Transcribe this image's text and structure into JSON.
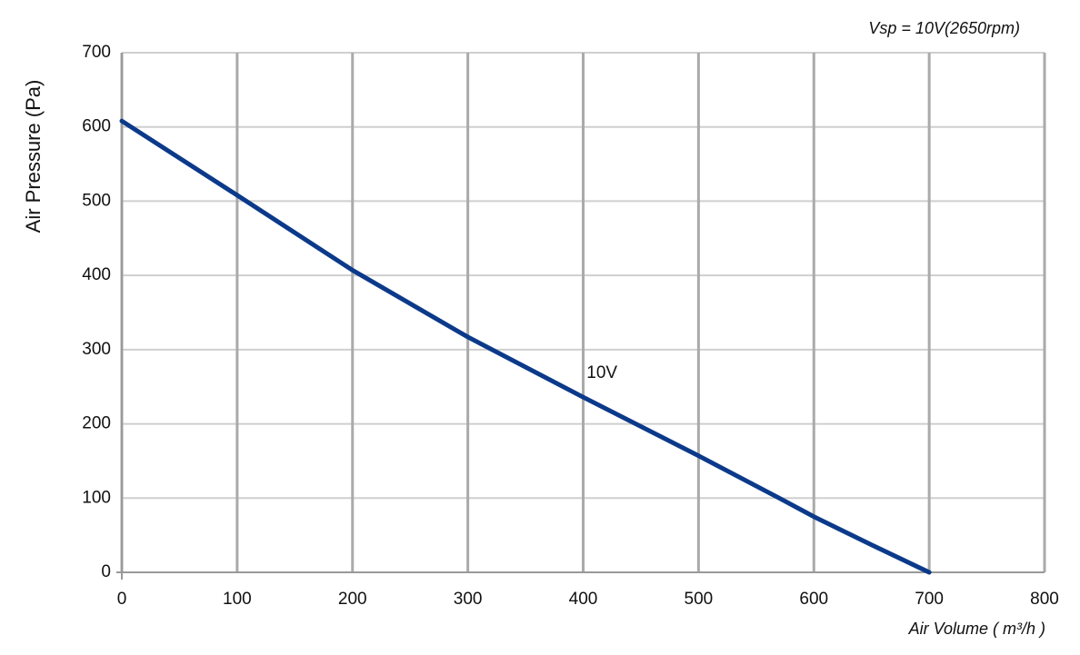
{
  "chart_data": {
    "type": "line",
    "title": "Vsp = 10V(2650rpm)",
    "x_label": "Air Volume ( m³/h )",
    "y_label": "Air Pressure  (Pa)",
    "x": [
      0,
      100,
      200,
      300,
      400,
      500,
      570,
      600,
      650,
      700
    ],
    "series": [
      {
        "name": "10V",
        "color": "#0c3a8a",
        "values": [
          608,
          508,
          407,
          317,
          236,
          157,
          100,
          75,
          37,
          0
        ]
      }
    ],
    "annotations": [
      {
        "text": "10V",
        "x": 403,
        "y": 268
      }
    ],
    "xlim": [
      0,
      800
    ],
    "xticks": [
      0,
      100,
      200,
      300,
      400,
      500,
      600,
      700,
      800
    ],
    "ylim": [
      0,
      700
    ],
    "yticks": [
      0,
      100,
      200,
      300,
      400,
      500,
      600,
      700
    ],
    "grid": true
  }
}
